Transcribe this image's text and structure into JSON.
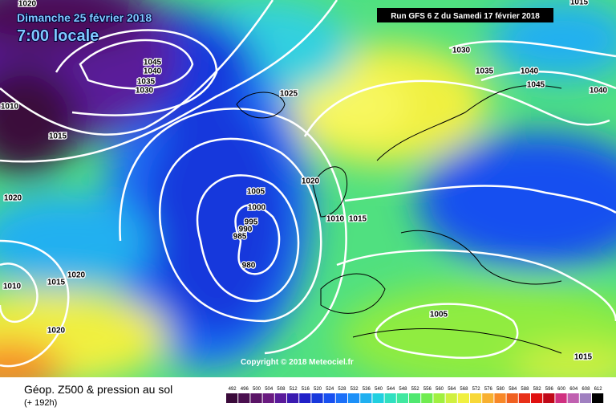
{
  "header": {
    "date": "Dimanche 25 février 2018",
    "time": "7:00 locale",
    "run": "Run GFS 6 Z du Samedi 17 février 2018"
  },
  "isobar_labels": [
    "1020",
    "1010",
    "1015",
    "1045",
    "1040",
    "1035",
    "1030",
    "1025",
    "1030",
    "1035",
    "1040",
    "1045",
    "1040",
    "1015",
    "1020",
    "1005",
    "1000",
    "995",
    "990",
    "985",
    "980",
    "1020",
    "1010",
    "1015",
    "1010",
    "1015",
    "1020",
    "1020",
    "1005",
    "1015"
  ],
  "copyright": "Copyright © 2018 Meteociel.fr",
  "footer": {
    "title": "Géop. Z500 & pression au sol",
    "subtitle": "(+ 192h)"
  },
  "scale": {
    "values": [
      492,
      496,
      500,
      504,
      508,
      512,
      516,
      520,
      524,
      528,
      532,
      536,
      540,
      544,
      548,
      552,
      556,
      560,
      564,
      568,
      572,
      576,
      580,
      584,
      588,
      592,
      596,
      600,
      604,
      608,
      612
    ],
    "colors": [
      "#3a0a3a",
      "#4a0f4f",
      "#5a1466",
      "#6a1a80",
      "#5a1a9a",
      "#3a1ab0",
      "#2020c8",
      "#1838dc",
      "#1850f0",
      "#1c70f8",
      "#1c90f8",
      "#20b0f0",
      "#20d0e0",
      "#30e0c0",
      "#40e8a0",
      "#50e870",
      "#70ec50",
      "#a0f040",
      "#d0f040",
      "#f0f040",
      "#f8d838",
      "#f8b030",
      "#f88828",
      "#f06020",
      "#e83018",
      "#e01010",
      "#c00818",
      "#d03080",
      "#c060b0",
      "#a080c0",
      "#000000"
    ]
  }
}
